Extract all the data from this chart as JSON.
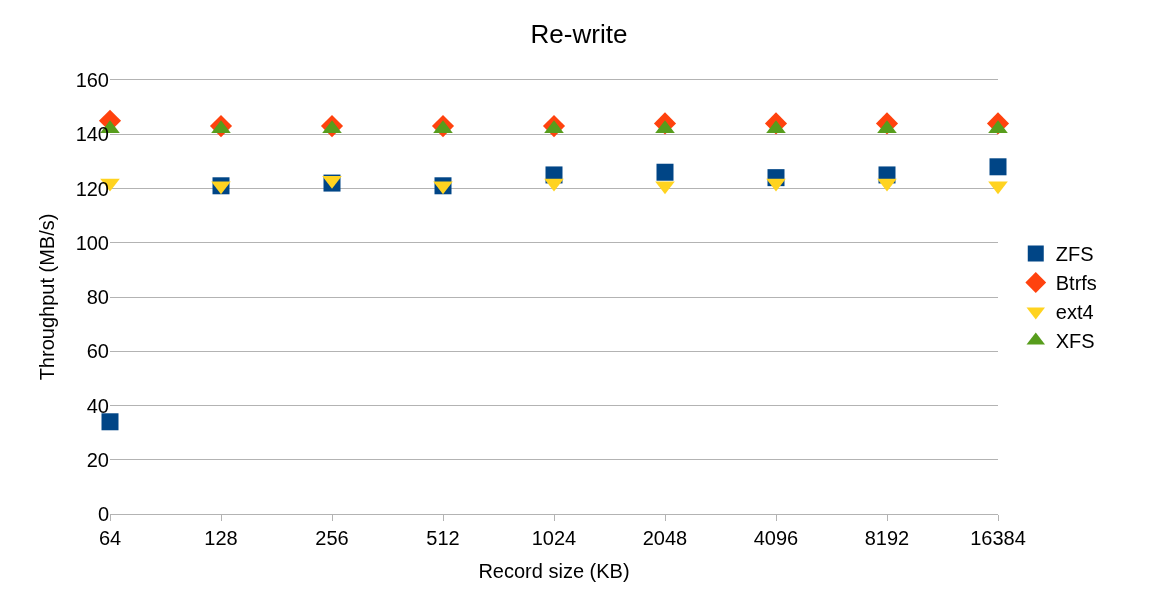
{
  "chart_data": {
    "type": "scatter",
    "title": "Re-write",
    "xlabel": "Record size (KB)",
    "ylabel": "Throughput (MB/s)",
    "categories": [
      "64",
      "128",
      "256",
      "512",
      "1024",
      "2048",
      "4096",
      "8192",
      "16384"
    ],
    "series": [
      {
        "name": "ZFS",
        "color": "#004586",
        "marker": "square",
        "values": [
          34,
          121,
          122,
          121,
          125,
          126,
          124,
          125,
          128
        ]
      },
      {
        "name": "Btrfs",
        "color": "#ff420e",
        "marker": "diamond",
        "values": [
          145,
          143,
          143,
          143,
          143,
          144,
          144,
          144,
          144
        ]
      },
      {
        "name": "ext4",
        "color": "#ffd320",
        "marker": "triangle-down",
        "values": [
          122,
          121,
          123,
          121,
          122,
          121,
          122,
          122,
          121
        ]
      },
      {
        "name": "XFS",
        "color": "#579d1c",
        "marker": "triangle",
        "values": [
          142,
          142,
          142,
          142,
          142,
          142,
          142,
          142,
          142
        ]
      }
    ],
    "ylim": [
      0,
      160
    ],
    "yticks": [
      0,
      20,
      40,
      60,
      80,
      100,
      120,
      140,
      160
    ],
    "grid": "y",
    "legend": "right"
  }
}
